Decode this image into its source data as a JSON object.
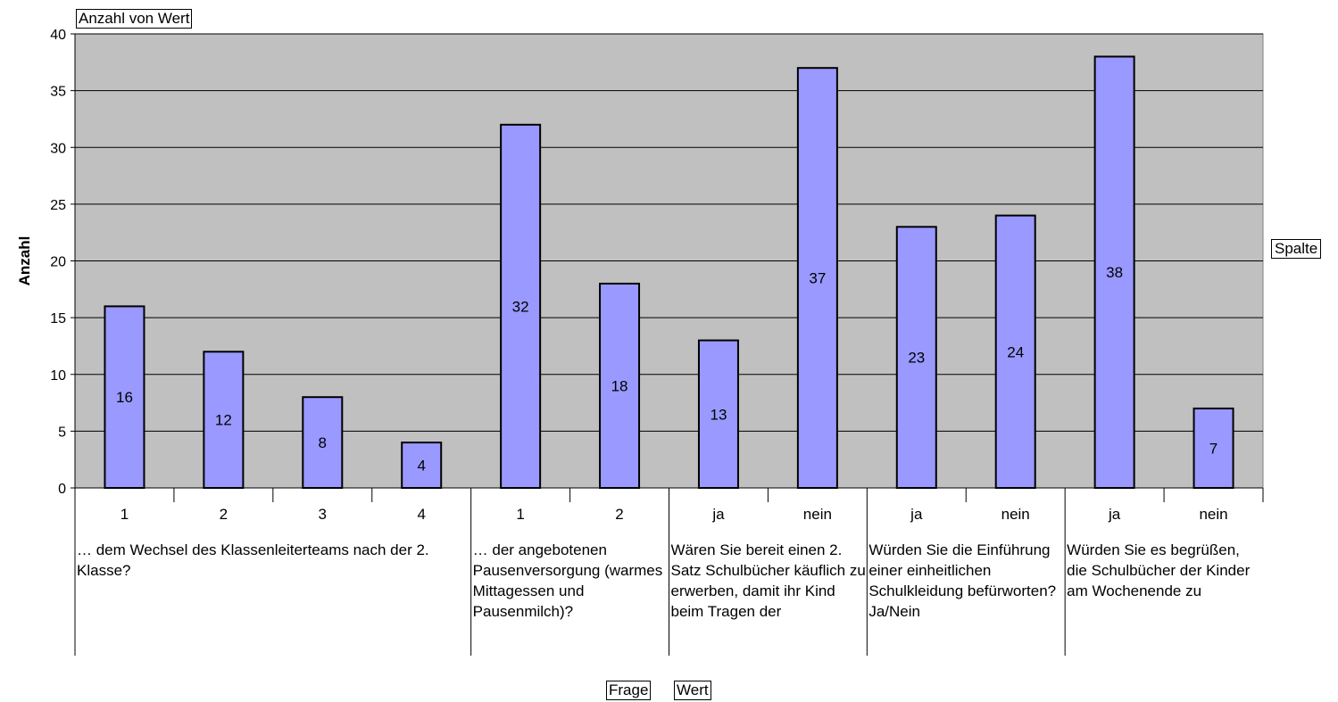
{
  "field_buttons": {
    "data_field": "Anzahl von Wert",
    "column_field": "Spalte",
    "row_field_1": "Frage",
    "row_field_2": "Wert"
  },
  "chart_data": {
    "type": "bar",
    "ylabel": "Anzahl",
    "ylim": [
      0,
      40
    ],
    "yticks": [
      0,
      5,
      10,
      15,
      20,
      25,
      30,
      35,
      40
    ],
    "grid": true,
    "plot_background": "#c0c0c0",
    "bar_color": "#9999ff",
    "categories": [
      "1",
      "2",
      "3",
      "4",
      "1",
      "2",
      "ja",
      "nein",
      "ja",
      "nein",
      "ja",
      "nein"
    ],
    "values": [
      16,
      12,
      8,
      4,
      32,
      18,
      13,
      37,
      23,
      24,
      38,
      7
    ],
    "groups": [
      {
        "label": "… dem Wechsel des Klassenleiterteams nach der 2. Klasse?",
        "count": 4
      },
      {
        "label": "… der angebotenen Pausenversorgung (warmes Mittagessen und Pausenmilch)?",
        "count": 2
      },
      {
        "label": "Wären Sie bereit einen 2. Satz Schulbücher käuflich zu erwerben, damit ihr Kind beim Tragen der",
        "count": 2
      },
      {
        "label": "Würden Sie die Einführung einer einheitlichen Schulkleidung befürworten?  Ja/Nein",
        "count": 2
      },
      {
        "label": "Würden Sie es begrüßen, die Schulbücher der Kinder am Wochenende zu",
        "count": 2
      }
    ]
  }
}
